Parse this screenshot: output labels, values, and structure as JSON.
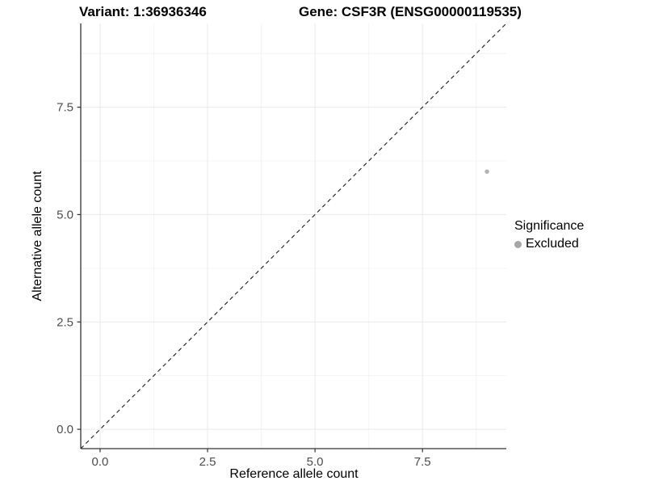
{
  "titles": {
    "variant": "Variant: 1:36936346",
    "gene": "Gene: CSF3R (ENSG00000119535)"
  },
  "axes": {
    "x": {
      "label": "Reference allele count",
      "tick_labels": [
        "0.0",
        "2.5",
        "5.0",
        "7.5"
      ]
    },
    "y": {
      "label": "Alternative allele count",
      "tick_labels": [
        "0.0",
        "2.5",
        "5.0",
        "7.5"
      ]
    }
  },
  "legend": {
    "title": "Significance",
    "items": [
      {
        "label": "Excluded",
        "color": "#a6a6a6"
      }
    ]
  },
  "colors": {
    "background": "#ffffff",
    "axis_line": "#333333",
    "tick_label": "#4d4d4d",
    "grid_major": "#e9e9e9",
    "grid_minor": "#f4f4f4",
    "reference_line": "#1a1a1a",
    "point": "#b3b3b3"
  },
  "chart_data": {
    "type": "scatter",
    "title": "Variant: 1:36936346 — Gene: CSF3R (ENSG00000119535)",
    "xlabel": "Reference allele count",
    "ylabel": "Alternative allele count",
    "xlim": [
      -0.45,
      9.45
    ],
    "ylim": [
      -0.45,
      9.45
    ],
    "x_ticks": [
      0.0,
      2.5,
      5.0,
      7.5
    ],
    "y_ticks": [
      0.0,
      2.5,
      5.0,
      7.5
    ],
    "grid": true,
    "legend_position": "right",
    "series": [
      {
        "name": "Excluded",
        "color": "#b3b3b3",
        "points": [
          {
            "x": 9,
            "y": 6
          }
        ]
      }
    ],
    "reference_line": {
      "equation": "y = x",
      "style": "dashed",
      "color": "#1a1a1a"
    }
  }
}
